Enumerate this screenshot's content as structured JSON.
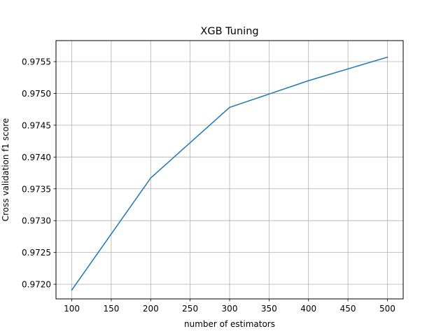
{
  "chart_data": {
    "type": "line",
    "title": "XGB Tuning",
    "xlabel": "number of estimators",
    "ylabel": "Cross validation f1 score",
    "xlim": [
      80,
      520
    ],
    "ylim": [
      0.97177,
      0.97583
    ],
    "xticks": [
      100,
      150,
      200,
      250,
      300,
      350,
      400,
      450,
      500
    ],
    "xtick_labels": [
      "100",
      "150",
      "200",
      "250",
      "300",
      "350",
      "400",
      "450",
      "500"
    ],
    "yticks": [
      0.972,
      0.9725,
      0.973,
      0.9735,
      0.974,
      0.9745,
      0.975,
      0.9755
    ],
    "ytick_labels": [
      "0.9720",
      "0.9725",
      "0.9730",
      "0.9735",
      "0.9740",
      "0.9745",
      "0.9750",
      "0.9755"
    ],
    "grid": true,
    "series": [
      {
        "color": "#1f77b4",
        "x": [
          100,
          200,
          300,
          400,
          500
        ],
        "y": [
          0.97191,
          0.97367,
          0.97478,
          0.9752,
          0.97557
        ]
      }
    ]
  }
}
